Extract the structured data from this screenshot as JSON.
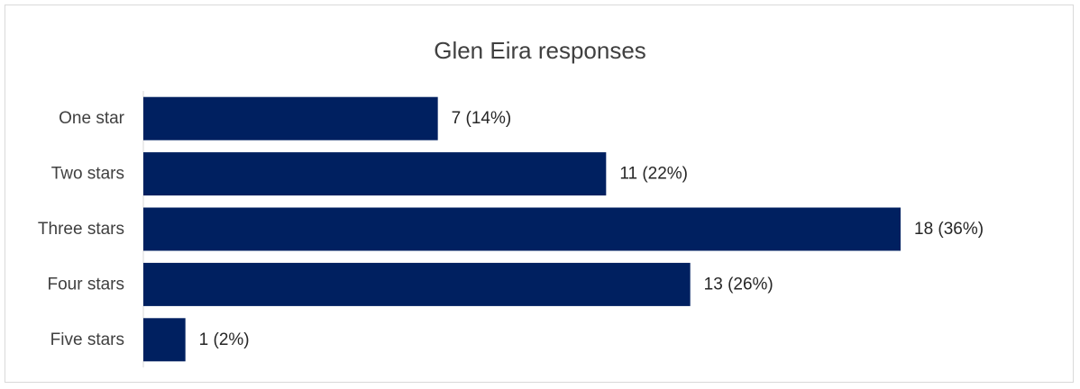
{
  "chart_data": {
    "type": "bar",
    "orientation": "horizontal",
    "title": "Glen Eira responses",
    "categories": [
      "One star",
      "Two stars",
      "Three stars",
      "Four stars",
      "Five stars"
    ],
    "values": [
      7,
      11,
      18,
      13,
      1
    ],
    "data_labels": [
      "7 (14%)",
      "11 (22%)",
      "18 (36%)",
      "13 (26%)",
      "1 (2%)"
    ],
    "xlabel": "",
    "ylabel": "",
    "xlim": [
      0,
      18
    ],
    "grid": false,
    "legend": "none",
    "bar_color": "#002060"
  }
}
